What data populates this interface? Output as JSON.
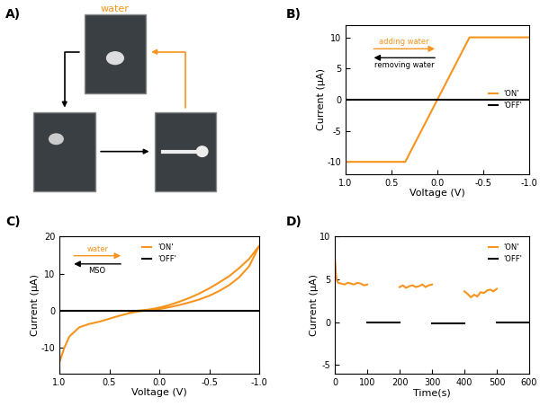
{
  "diagram": {
    "label": "A)",
    "caption": "water"
  },
  "chart_data": [
    {
      "type": "line",
      "title": "B)",
      "x_label": "Voltage (V)",
      "y_label": "Current (μA)",
      "xlim": [
        1.0,
        -1.0
      ],
      "xticks": [
        1.0,
        0.5,
        0.0,
        -0.5,
        -1.0
      ],
      "ylim": [
        -12,
        12
      ],
      "yticks": [
        -10,
        -5,
        0,
        5,
        10
      ],
      "legend": "center right",
      "annotations": [
        "adding water",
        "removing water"
      ],
      "series": [
        {
          "name": "'ON'",
          "color": "#f7941d",
          "x": [
            1.0,
            0.35,
            -0.35,
            -1.0
          ],
          "values": [
            -10,
            -10,
            10,
            10
          ]
        },
        {
          "name": "'OFF'",
          "color": "#000000",
          "x": [
            1.0,
            -1.0
          ],
          "values": [
            0,
            0
          ]
        }
      ]
    },
    {
      "type": "line",
      "title": "C)",
      "x_label": "Voltage (V)",
      "y_label": "Current (μA)",
      "xlim": [
        1.0,
        -1.0
      ],
      "xticks": [
        1.0,
        0.5,
        0.0,
        -0.5,
        -1.0
      ],
      "ylim": [
        -17,
        20
      ],
      "yticks": [
        -10,
        0,
        10,
        20
      ],
      "legend": "upper center",
      "annotations": [
        "water",
        "MSO"
      ],
      "series": [
        {
          "name": "'ON'",
          "color": "#f7941d",
          "x": [
            1.0,
            0.95,
            0.9,
            0.8,
            0.7,
            0.6,
            0.5,
            0.4,
            0.3,
            0.2,
            0.1,
            0.0,
            -0.1,
            -0.2,
            -0.3,
            -0.4,
            -0.5,
            -0.6,
            -0.7,
            -0.8,
            -0.9,
            -1.0,
            -0.9,
            -0.8,
            -0.7,
            -0.6,
            -0.5,
            -0.4,
            -0.3,
            -0.2,
            -0.1,
            0.0,
            0.1,
            0.2,
            0.3
          ],
          "values": [
            -14,
            -10,
            -7,
            -4.5,
            -3.6,
            -3,
            -2.2,
            -1.4,
            -0.7,
            -0.2,
            0.1,
            0.4,
            0.9,
            1.5,
            2.2,
            3,
            4,
            5.3,
            6.9,
            9,
            12,
            17.5,
            14,
            11.5,
            9.3,
            7.6,
            6,
            4.6,
            3.4,
            2.4,
            1.5,
            0.8,
            0.3,
            0,
            -0.2
          ]
        },
        {
          "name": "'OFF'",
          "color": "#000000",
          "x": [
            1.0,
            -1.0
          ],
          "values": [
            0,
            0
          ]
        }
      ]
    },
    {
      "type": "line",
      "title": "D)",
      "x_label": "Time(s)",
      "y_label": "Current (μA)",
      "xlim": [
        0,
        600
      ],
      "xticks": [
        0,
        100,
        200,
        300,
        400,
        500,
        600
      ],
      "ylim": [
        -6,
        10
      ],
      "yticks": [
        -5,
        0,
        5,
        10
      ],
      "legend": "upper right",
      "series": [
        {
          "name": "'ON'",
          "color": "#f7941d",
          "x": [
            0,
            5,
            10,
            20,
            30,
            40,
            50,
            60,
            70,
            80,
            90,
            100,
            null,
            200,
            210,
            220,
            230,
            240,
            250,
            260,
            270,
            280,
            290,
            300,
            null,
            400,
            410,
            420,
            430,
            440,
            450,
            460,
            470,
            480,
            490,
            500
          ],
          "values": [
            7.5,
            5,
            4.6,
            4.5,
            4.4,
            4.6,
            4.5,
            4.4,
            4.6,
            4.5,
            4.3,
            4.4,
            null,
            4.1,
            4.3,
            4.0,
            4.2,
            4.3,
            4.1,
            4.2,
            4.4,
            4.1,
            4.3,
            4.4,
            null,
            3.6,
            3.3,
            2.9,
            3.2,
            3.0,
            3.5,
            3.4,
            3.7,
            3.8,
            3.6,
            3.9
          ]
        },
        {
          "name": "'OFF'",
          "color": "#000000",
          "x": [
            100,
            200,
            null,
            300,
            400,
            null,
            500,
            600
          ],
          "values": [
            0,
            0,
            null,
            -0.1,
            -0.1,
            null,
            0,
            0
          ]
        }
      ]
    }
  ]
}
